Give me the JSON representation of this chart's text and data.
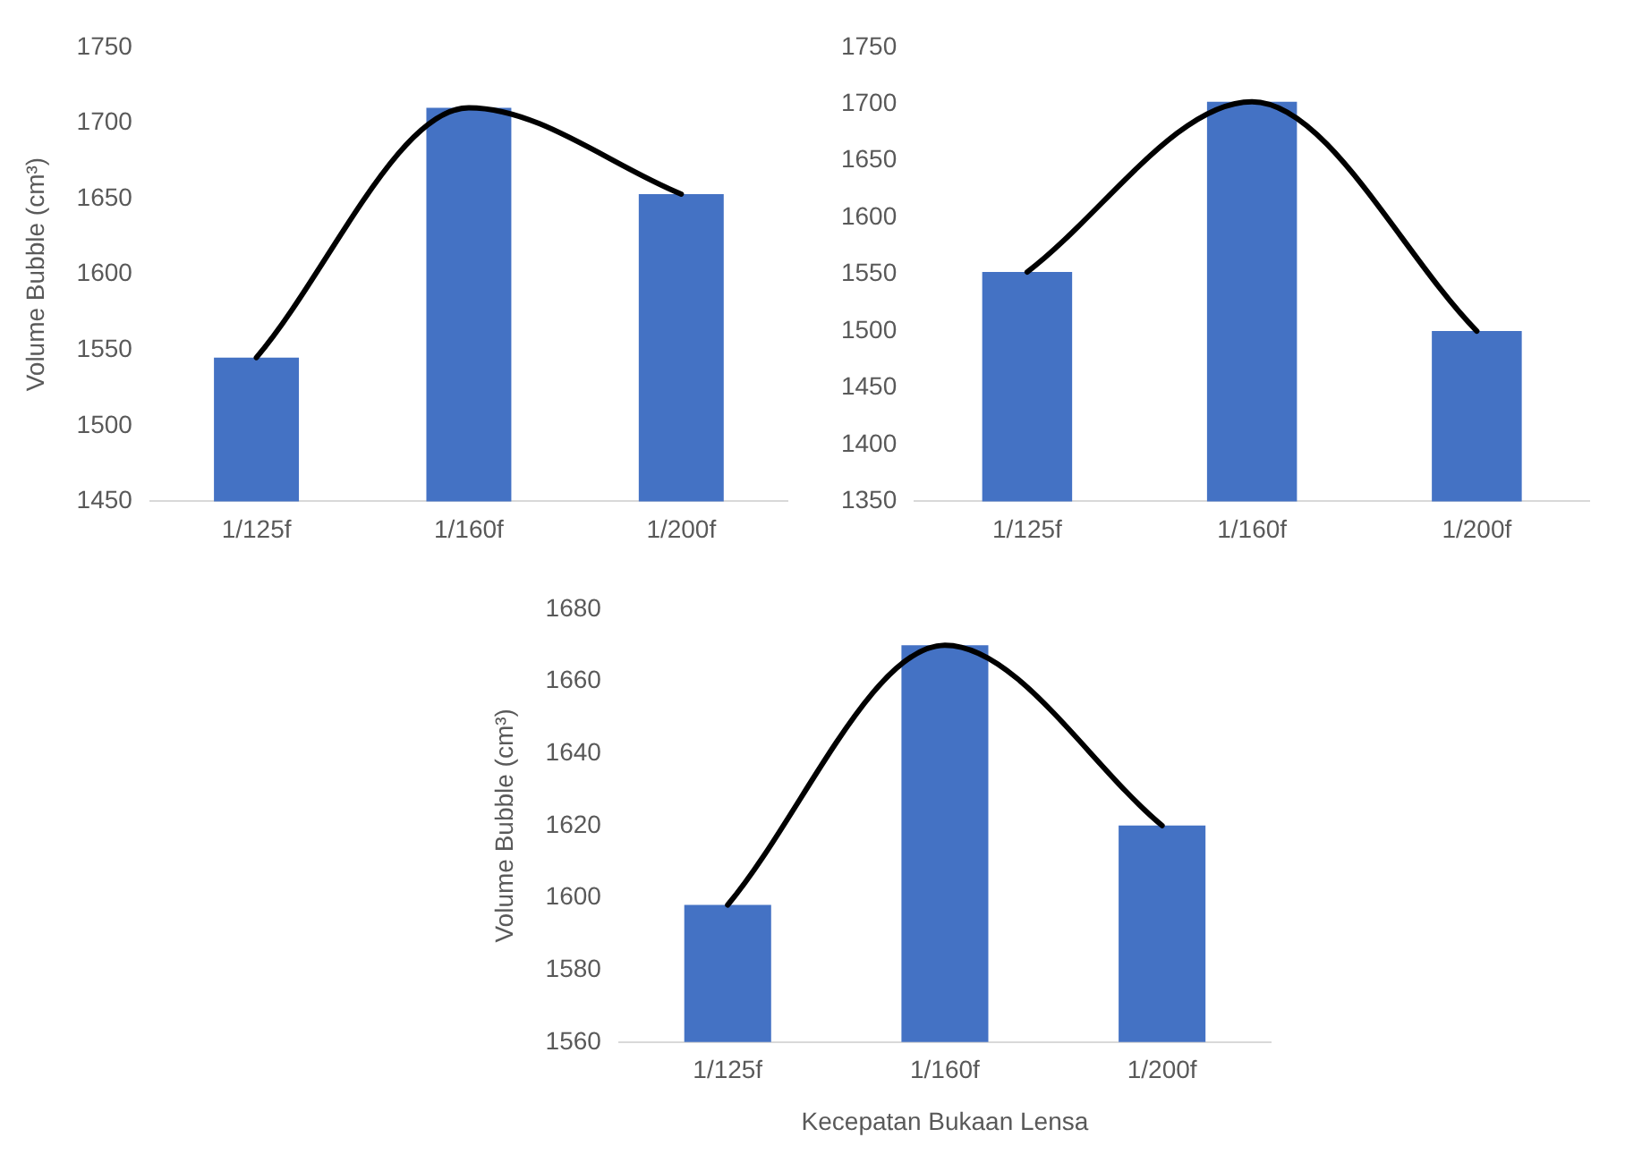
{
  "chart_data": [
    {
      "type": "bar",
      "ylabel": "Volume Bubble (cm³)",
      "categories": [
        "1/125f",
        "1/160f",
        "1/200f"
      ],
      "ylim": [
        1450,
        1750
      ],
      "yticks": [
        1450,
        1500,
        1550,
        1600,
        1650,
        1700,
        1750
      ],
      "grid": false,
      "legend": false,
      "series": [
        {
          "color": "#4472c4",
          "values": [
            1545,
            1710,
            1653
          ]
        },
        {
          "type": "line",
          "color": "#000000",
          "values": [
            1545,
            1710,
            1653
          ]
        }
      ]
    },
    {
      "type": "bar",
      "categories": [
        "1/125f",
        "1/160f",
        "1/200f"
      ],
      "ylim": [
        1350,
        1750
      ],
      "yticks": [
        1350,
        1400,
        1450,
        1500,
        1550,
        1600,
        1650,
        1700,
        1750
      ],
      "grid": false,
      "legend": false,
      "series": [
        {
          "color": "#4472c4",
          "values": [
            1552,
            1702,
            1500
          ]
        },
        {
          "type": "line",
          "color": "#000000",
          "values": [
            1552,
            1702,
            1500
          ]
        }
      ]
    },
    {
      "type": "bar",
      "ylabel": "Volume Bubble (cm³)",
      "xlabel": "Kecepatan Bukaan Lensa",
      "categories": [
        "1/125f",
        "1/160f",
        "1/200f"
      ],
      "ylim": [
        1560,
        1680
      ],
      "yticks": [
        1560,
        1580,
        1600,
        1620,
        1640,
        1660,
        1680
      ],
      "grid": false,
      "legend": false,
      "series": [
        {
          "color": "#4472c4",
          "values": [
            1598,
            1670,
            1620
          ]
        },
        {
          "type": "line",
          "color": "#000000",
          "values": [
            1598,
            1670,
            1620
          ]
        }
      ]
    }
  ]
}
